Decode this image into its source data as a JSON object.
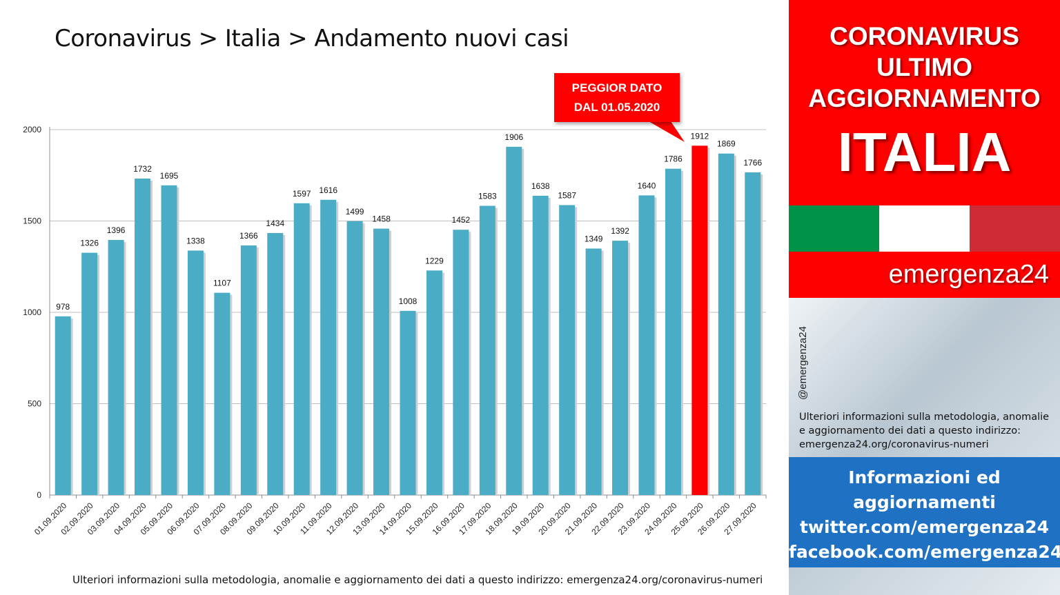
{
  "title": "Coronavirus > Italia > Andamento nuovi casi",
  "callout": {
    "line1": "PEGGIOR DATO",
    "line2": "DAL 01.05.2020"
  },
  "footnote": "Ulteriori informazioni sulla metodologia, anomalie e aggiornamento dei dati a questo indirizzo: emergenza24.org/coronavirus-numeri",
  "sidebar": {
    "headline": [
      "CORONAVIRUS",
      "ULTIMO",
      "AGGIORNAMENTO"
    ],
    "country": "ITALIA",
    "brand": "emergenza24",
    "handle": "@emergenza24",
    "note": "Ulteriori informazioni sulla metodologia, anomalie e aggiornamento dei dati a questo indirizzo: emergenza24.org/coronavirus-numeri",
    "info_lines": [
      "Informazioni ed",
      "aggiornamenti",
      "twitter.com/emergenza24",
      "facebook.com/emergenza24"
    ],
    "flag_colors": [
      "#009246",
      "#ffffff",
      "#ce2b37"
    ]
  },
  "colors": {
    "bar": "#4bacc6",
    "highlight": "#ff0000",
    "grid": "#bfbfbf",
    "red_panel": "#ff0000",
    "blue_panel": "#1f72c3"
  },
  "chart_data": {
    "type": "bar",
    "title": "",
    "xlabel": "",
    "ylabel": "",
    "ylim": [
      0,
      2000
    ],
    "yticks": [
      0,
      500,
      1000,
      1500,
      2000
    ],
    "grid": true,
    "highlight_category": "25.09.2020",
    "categories": [
      "01.09.2020",
      "02.09.2020",
      "03.09.2020",
      "04.09.2020",
      "05.09.2020",
      "06.09.2020",
      "07.09.2020",
      "08.09.2020",
      "09.09.2020",
      "10.09.2020",
      "11.09.2020",
      "12.09.2020",
      "13.09.2020",
      "14.09.2020",
      "15.09.2020",
      "16.09.2020",
      "17.09.2020",
      "18.09.2020",
      "19.09.2020",
      "20.09.2020",
      "21.09.2020",
      "22.09.2020",
      "23.09.2020",
      "24.09.2020",
      "25.09.2020",
      "26.09.2020",
      "27.09.2020"
    ],
    "values": [
      978,
      1326,
      1396,
      1732,
      1695,
      1338,
      1107,
      1366,
      1434,
      1597,
      1616,
      1499,
      1458,
      1008,
      1229,
      1452,
      1583,
      1906,
      1638,
      1587,
      1349,
      1392,
      1640,
      1786,
      1912,
      1869,
      1766
    ]
  }
}
